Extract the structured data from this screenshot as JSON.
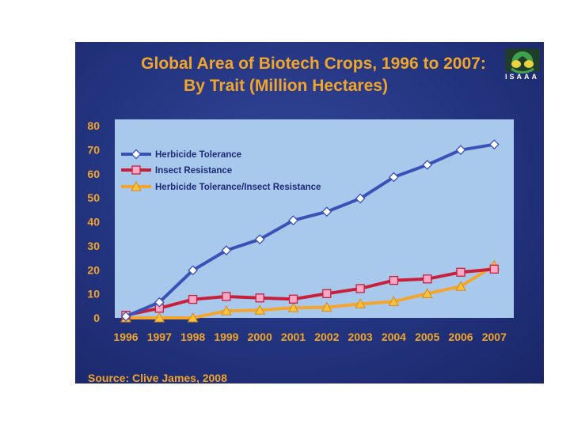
{
  "title_line1": "Global Area of Biotech Crops, 1996 to 2007:",
  "title_line2": "By Trait (Million Hectares)",
  "logo_text": "ISAAA",
  "source": "Source: Clive James, 2008",
  "colors": {
    "background": "#23347f",
    "plot_area": "#a9c9ec",
    "text": "#f1a52a",
    "legend_text": "#1e2a78"
  },
  "chart_data": {
    "type": "line",
    "title": "Global Area of Biotech Crops, 1996 to 2007: By Trait (Million Hectares)",
    "xlabel": "",
    "ylabel": "",
    "x": [
      "1996",
      "1997",
      "1998",
      "1999",
      "2000",
      "2001",
      "2002",
      "2003",
      "2004",
      "2005",
      "2006",
      "2007"
    ],
    "ylim": [
      0,
      80
    ],
    "yticks": [
      0,
      10,
      20,
      30,
      40,
      50,
      60,
      70,
      80
    ],
    "grid": false,
    "legend_position": "top-left",
    "series": [
      {
        "name": "Herbicide Tolerance",
        "color": "#3a52b8",
        "marker": "diamond",
        "values": [
          0.6,
          6.5,
          19.8,
          28.1,
          32.7,
          40.6,
          44.2,
          49.7,
          58.6,
          63.7,
          69.9,
          72.2
        ]
      },
      {
        "name": "Insect Resistance",
        "color": "#c8203a",
        "marker": "square",
        "values": [
          1.1,
          4.0,
          7.7,
          8.9,
          8.3,
          7.8,
          10.1,
          12.2,
          15.6,
          16.2,
          19.0,
          20.3
        ]
      },
      {
        "name": "Herbicide Tolerance/Insect Resistance",
        "color": "#f4a52e",
        "marker": "triangle",
        "values": [
          0,
          0,
          0,
          2.9,
          3.2,
          4.2,
          4.4,
          5.8,
          6.8,
          10.1,
          13.1,
          21.8
        ]
      }
    ]
  }
}
